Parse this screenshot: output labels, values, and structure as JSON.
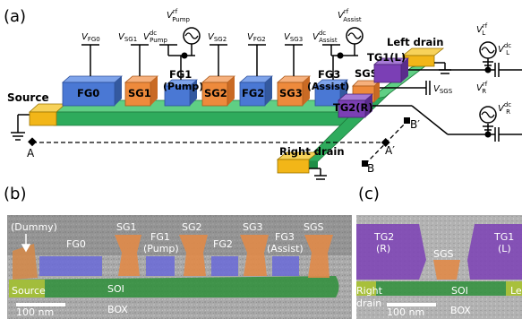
{
  "panel_a": {
    "label": "(a)",
    "gates": [
      {
        "name": "FG0",
        "sub": ""
      },
      {
        "name": "SG1",
        "sub": ""
      },
      {
        "name": "FG1",
        "sub": "(Pump)"
      },
      {
        "name": "SG2",
        "sub": ""
      },
      {
        "name": "FG2",
        "sub": ""
      },
      {
        "name": "SG3",
        "sub": ""
      },
      {
        "name": "FG3",
        "sub": "(Assist)"
      },
      {
        "name": "SGS",
        "sub": ""
      },
      {
        "name": "TG1(L)",
        "sub": ""
      },
      {
        "name": "TG2(R)",
        "sub": ""
      }
    ],
    "voltages": {
      "v_fg0": "V",
      "v_fg0_sub": "FG0",
      "v_sg1": "V",
      "v_sg1_sub": "SG1",
      "v_pump_dc": "V",
      "v_pump_dc_sub": "Pump",
      "v_pump_dc_sup": "dc",
      "v_pump_rf": "V",
      "v_pump_rf_sub": "Pump",
      "v_pump_rf_sup": "rf",
      "v_sg2": "V",
      "v_sg2_sub": "SG2",
      "v_fg2": "V",
      "v_fg2_sub": "FG2",
      "v_sg3": "V",
      "v_sg3_sub": "SG3",
      "v_assist_dc": "V",
      "v_assist_dc_sub": "Assist",
      "v_assist_dc_sup": "dc",
      "v_assist_rf": "V",
      "v_assist_rf_sub": "Assist",
      "v_assist_rf_sup": "rf",
      "v_sgs": "V",
      "v_sgs_sub": "SGS",
      "v_l_rf": "V",
      "v_l_rf_sub": "L",
      "v_l_rf_sup": "rf",
      "v_l_dc": "V",
      "v_l_dc_sub": "L",
      "v_l_dc_sup": "dc",
      "v_r_rf": "V",
      "v_r_rf_sub": "R",
      "v_r_rf_sup": "rf",
      "v_r_dc": "V",
      "v_r_dc_sub": "R",
      "v_r_dc_sup": "dc"
    },
    "source": "Source",
    "left_drain": "Left drain",
    "right_drain": "Right drain",
    "cut_a": "A",
    "cut_a_prime": "A′",
    "cut_b": "B",
    "cut_b_prime": "B′"
  },
  "panel_b": {
    "label": "(b)",
    "dummy": "(Dummy)",
    "fg0": "FG0",
    "sg1": "SG1",
    "fg1": "FG1",
    "fg1_sub": "(Pump)",
    "sg2": "SG2",
    "fg2": "FG2",
    "sg3": "SG3",
    "fg3": "FG3",
    "fg3_sub": "(Assist)",
    "sgs": "SGS",
    "source": "Source",
    "soi": "SOI",
    "box": "BOX",
    "scale": "100 nm"
  },
  "panel_c": {
    "label": "(c)",
    "tg2": "TG2",
    "tg2_sub": "(R)",
    "sgs": "SGS",
    "tg1": "TG1",
    "tg1_sub": "(L)",
    "right": "Right",
    "drain": "drain",
    "soi": "SOI",
    "left_partial": "Le",
    "box": "BOX",
    "scale": "100 nm"
  },
  "colors": {
    "fg_blue": "#4a78d4",
    "sg_orange": "#ee8a3c",
    "tg_purple": "#7b3fb5",
    "channel_green": "#2eab5c",
    "drain_yellow": "#f2b618"
  }
}
